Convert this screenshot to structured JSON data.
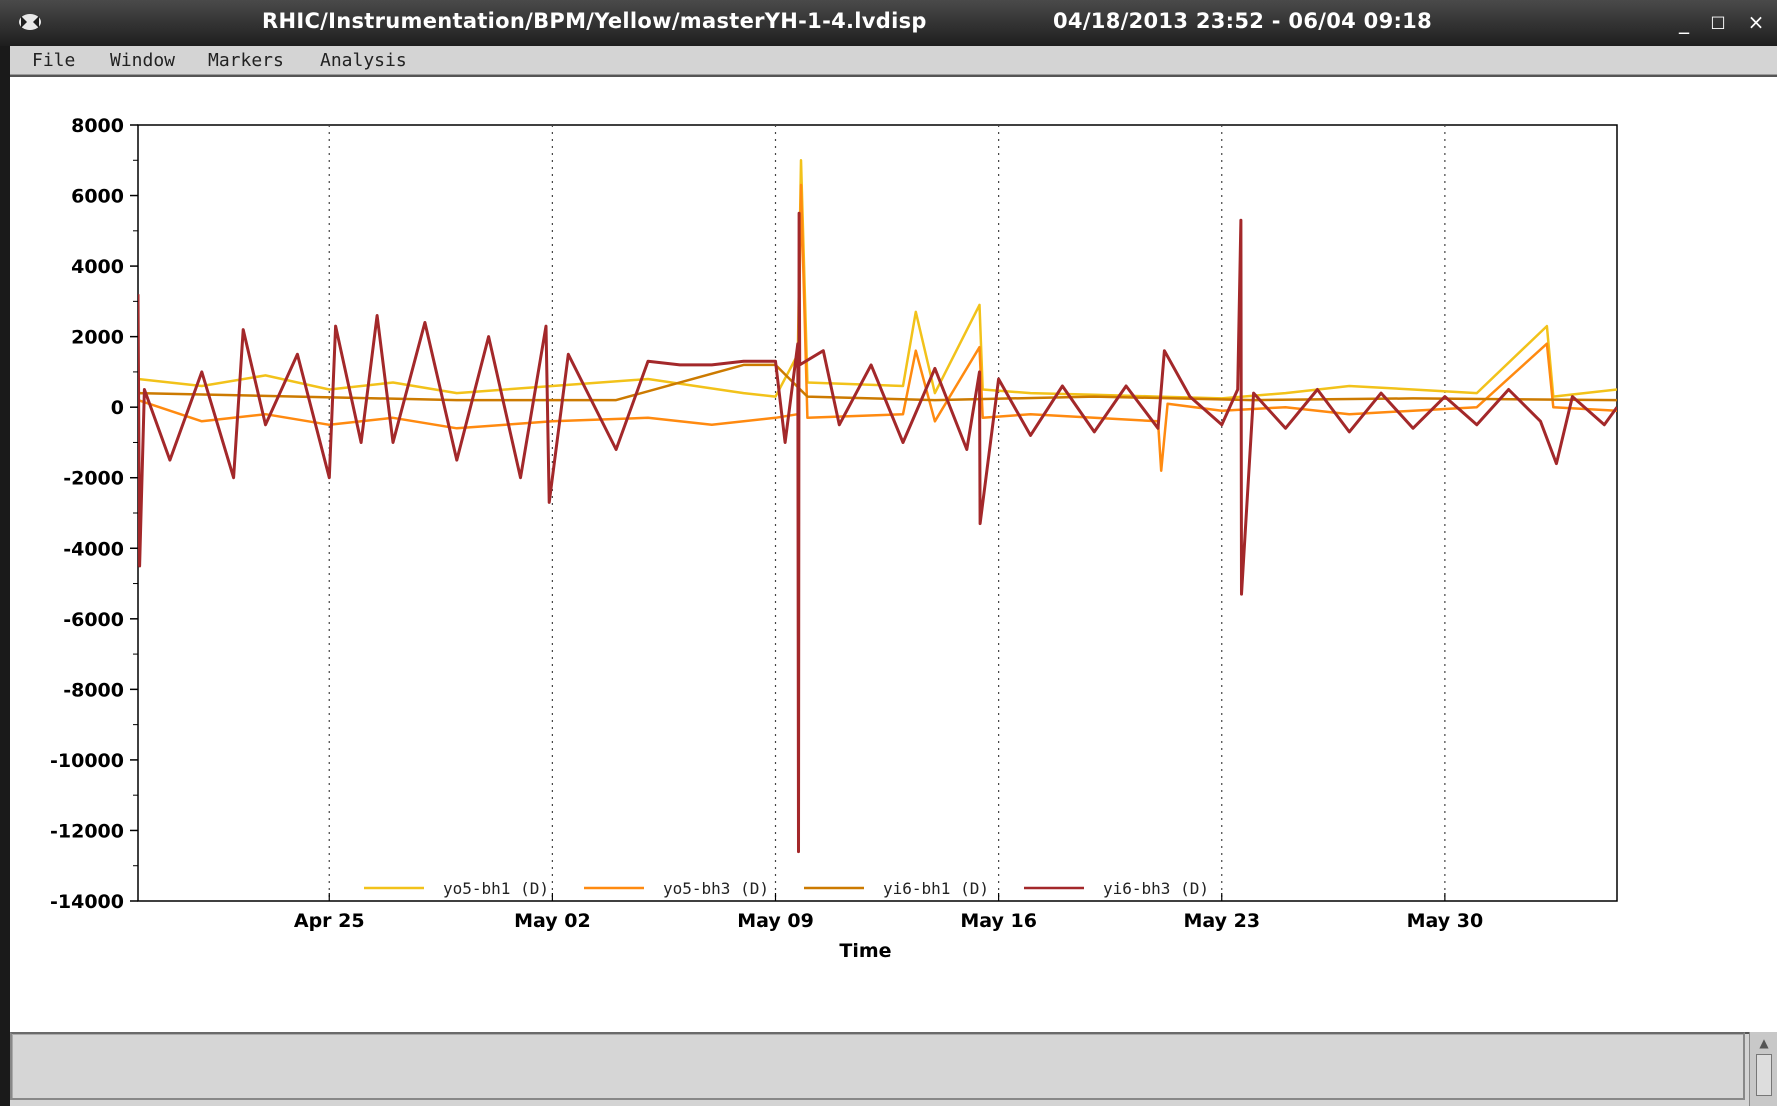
{
  "window": {
    "title_path": "RHIC/Instrumentation/BPM/Yellow/masterYH-1-4.lvdisp",
    "title_range": "04/18/2013 23:52 - 06/04 09:18",
    "minimize_glyph": "_",
    "maximize_glyph": "□",
    "close_glyph": "×",
    "icon": "app-icon"
  },
  "menu": {
    "items": [
      "File",
      "Window",
      "Markers",
      "Analysis"
    ]
  },
  "chart_data": {
    "type": "line",
    "title": "",
    "xlabel": "Time",
    "ylabel": "",
    "ylim": [
      -14000,
      8000
    ],
    "yticks": [
      8000,
      6000,
      4000,
      2000,
      0,
      -2000,
      -4000,
      -6000,
      -8000,
      -10000,
      -12000,
      -14000
    ],
    "xlim_days": [
      0,
      46.4
    ],
    "x_start": "04/18/2013 23:52",
    "xtick_labels": [
      "Apr 25",
      "May 02",
      "May 09",
      "May 16",
      "May 23",
      "May 30"
    ],
    "xtick_days": [
      6.0,
      13.0,
      20.0,
      27.0,
      34.0,
      41.0
    ],
    "grid": "vertical-dotted",
    "legend_position": "bottom",
    "series": [
      {
        "name": "yo5-bh1 (D)",
        "color": "#f2c21a",
        "points": [
          [
            0,
            800
          ],
          [
            2,
            600
          ],
          [
            4,
            900
          ],
          [
            6,
            500
          ],
          [
            8,
            700
          ],
          [
            10,
            400
          ],
          [
            13,
            600
          ],
          [
            16,
            800
          ],
          [
            19,
            400
          ],
          [
            20,
            300
          ],
          [
            20.7,
            1500
          ],
          [
            20.8,
            7000
          ],
          [
            21,
            700
          ],
          [
            24,
            600
          ],
          [
            24.4,
            2700
          ],
          [
            25,
            400
          ],
          [
            26.4,
            2900
          ],
          [
            26.5,
            500
          ],
          [
            28,
            400
          ],
          [
            30,
            350
          ],
          [
            32,
            300
          ],
          [
            34,
            250
          ],
          [
            36,
            400
          ],
          [
            38,
            600
          ],
          [
            40,
            500
          ],
          [
            42,
            400
          ],
          [
            44.2,
            2300
          ],
          [
            44.4,
            300
          ],
          [
            46.4,
            500
          ]
        ]
      },
      {
        "name": "yo5-bh3 (D)",
        "color": "#ff8a10",
        "points": [
          [
            0,
            200
          ],
          [
            2,
            -400
          ],
          [
            4,
            -200
          ],
          [
            6,
            -500
          ],
          [
            8,
            -300
          ],
          [
            10,
            -600
          ],
          [
            13,
            -400
          ],
          [
            16,
            -300
          ],
          [
            18,
            -500
          ],
          [
            20,
            -300
          ],
          [
            20.7,
            -200
          ],
          [
            20.8,
            6300
          ],
          [
            21,
            -300
          ],
          [
            24,
            -200
          ],
          [
            24.4,
            1600
          ],
          [
            25,
            -400
          ],
          [
            26.4,
            1700
          ],
          [
            26.5,
            -300
          ],
          [
            28,
            -200
          ],
          [
            30,
            -300
          ],
          [
            32,
            -400
          ],
          [
            32.1,
            -1800
          ],
          [
            32.3,
            100
          ],
          [
            34,
            -100
          ],
          [
            36,
            0
          ],
          [
            38,
            -200
          ],
          [
            40,
            -100
          ],
          [
            42,
            0
          ],
          [
            44.2,
            1800
          ],
          [
            44.4,
            0
          ],
          [
            46.4,
            -100
          ]
        ]
      },
      {
        "name": "yi6-bh1 (D)",
        "color": "#cc7a00",
        "points": [
          [
            0,
            400
          ],
          [
            5,
            300
          ],
          [
            10,
            200
          ],
          [
            15,
            200
          ],
          [
            19,
            1200
          ],
          [
            20,
            1200
          ],
          [
            21,
            300
          ],
          [
            25,
            200
          ],
          [
            30,
            300
          ],
          [
            35,
            200
          ],
          [
            40,
            250
          ],
          [
            46.4,
            200
          ]
        ]
      },
      {
        "name": "yi6-bh3 (D)",
        "color": "#a3282a",
        "points": [
          [
            0,
            3200
          ],
          [
            0.05,
            -4500
          ],
          [
            0.2,
            500
          ],
          [
            1,
            -1500
          ],
          [
            2,
            1000
          ],
          [
            3,
            -2000
          ],
          [
            3.3,
            2200
          ],
          [
            4,
            -500
          ],
          [
            5,
            1500
          ],
          [
            6,
            -2000
          ],
          [
            6.2,
            2300
          ],
          [
            7,
            -1000
          ],
          [
            7.5,
            2600
          ],
          [
            8,
            -1000
          ],
          [
            9,
            2400
          ],
          [
            10,
            -1500
          ],
          [
            11,
            2000
          ],
          [
            12,
            -2000
          ],
          [
            12.8,
            2300
          ],
          [
            12.9,
            -2700
          ],
          [
            13.5,
            1500
          ],
          [
            15,
            -1200
          ],
          [
            16,
            1300
          ],
          [
            17,
            1200
          ],
          [
            18,
            1200
          ],
          [
            19,
            1300
          ],
          [
            20,
            1300
          ],
          [
            20.3,
            -1000
          ],
          [
            20.7,
            1800
          ],
          [
            20.72,
            -12600
          ],
          [
            20.74,
            5500
          ],
          [
            20.76,
            1200
          ],
          [
            21.5,
            1600
          ],
          [
            22,
            -500
          ],
          [
            23,
            1200
          ],
          [
            24,
            -1000
          ],
          [
            25,
            1100
          ],
          [
            26,
            -1200
          ],
          [
            26.4,
            1000
          ],
          [
            26.42,
            -3300
          ],
          [
            27,
            800
          ],
          [
            28,
            -800
          ],
          [
            29,
            600
          ],
          [
            30,
            -700
          ],
          [
            31,
            600
          ],
          [
            32,
            -600
          ],
          [
            32.2,
            1600
          ],
          [
            33,
            300
          ],
          [
            34,
            -500
          ],
          [
            34.5,
            500
          ],
          [
            34.6,
            5300
          ],
          [
            34.62,
            -5300
          ],
          [
            35,
            400
          ],
          [
            36,
            -600
          ],
          [
            37,
            500
          ],
          [
            38,
            -700
          ],
          [
            39,
            400
          ],
          [
            40,
            -600
          ],
          [
            41,
            300
          ],
          [
            42,
            -500
          ],
          [
            43,
            500
          ],
          [
            44,
            -400
          ],
          [
            44.5,
            -1600
          ],
          [
            45,
            300
          ],
          [
            46,
            -500
          ],
          [
            46.4,
            0
          ]
        ]
      }
    ]
  }
}
